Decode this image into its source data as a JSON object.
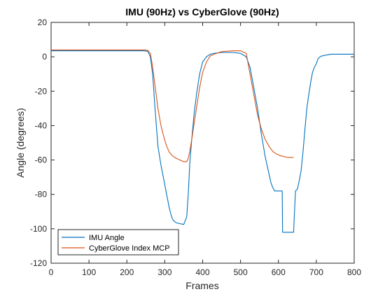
{
  "chart_data": {
    "type": "line",
    "title": "IMU (90Hz) vs CyberGlove (90Hz)",
    "xlabel": "Frames",
    "ylabel": "Angle (degrees)",
    "xlim": [
      0,
      800
    ],
    "ylim": [
      -120,
      20
    ],
    "xticks": [
      0,
      100,
      200,
      300,
      400,
      500,
      600,
      700,
      800
    ],
    "yticks": [
      -120,
      -100,
      -80,
      -60,
      -40,
      -20,
      0,
      20
    ],
    "grid": false,
    "legend_position": "bottom-left",
    "series": [
      {
        "name": "IMU Angle",
        "color": "#0072BD",
        "x": [
          0,
          100,
          200,
          245,
          255,
          262,
          268,
          275,
          282,
          290,
          298,
          305,
          312,
          318,
          322,
          330,
          340,
          350,
          358,
          362,
          366,
          372,
          378,
          385,
          392,
          400,
          410,
          420,
          430,
          450,
          480,
          500,
          515,
          525,
          535,
          545,
          555,
          565,
          575,
          580,
          585,
          590,
          600,
          610,
          611,
          625,
          640,
          645,
          650,
          655,
          660,
          665,
          670,
          675,
          680,
          685,
          690,
          695,
          700,
          705,
          710,
          715,
          725,
          740,
          760,
          780,
          800
        ],
        "y": [
          3.5,
          3.5,
          3.5,
          3.5,
          3.2,
          0,
          -10,
          -32,
          -52,
          -63,
          -72,
          -80,
          -88,
          -93,
          -95,
          -96.5,
          -97,
          -97.5,
          -93,
          -80,
          -62,
          -46,
          -32,
          -20,
          -10,
          -3,
          0,
          1.5,
          2,
          2.5,
          2.5,
          2,
          0,
          -6,
          -18,
          -30,
          -45,
          -58,
          -68,
          -73,
          -76,
          -78,
          -78,
          -78,
          -102,
          -102,
          -102,
          -78,
          -77,
          -72,
          -66,
          -55,
          -42,
          -30,
          -22,
          -15,
          -9,
          -6,
          -4,
          -1,
          0,
          0.5,
          1,
          1.5,
          1.5,
          1.5,
          1.5
        ]
      },
      {
        "name": "CyberGlove Index MCP",
        "color": "#D95319",
        "x": [
          0,
          100,
          200,
          245,
          255,
          262,
          268,
          275,
          282,
          290,
          298,
          305,
          312,
          320,
          330,
          340,
          350,
          358,
          362,
          366,
          372,
          378,
          385,
          392,
          400,
          410,
          420,
          430,
          450,
          480,
          500,
          515,
          520,
          525,
          535,
          545,
          555,
          565,
          575,
          585,
          595,
          605,
          615,
          625,
          630,
          640
        ],
        "y": [
          4,
          4,
          4,
          4,
          3.8,
          2,
          -6,
          -18,
          -30,
          -40,
          -47,
          -52,
          -55.5,
          -57.5,
          -59,
          -60,
          -61,
          -61,
          -59,
          -55,
          -47,
          -38,
          -28,
          -18,
          -9,
          -3,
          0.5,
          1.5,
          3,
          3.5,
          3.5,
          2,
          -4,
          -10,
          -22,
          -34,
          -42,
          -48,
          -52,
          -55,
          -56.5,
          -57.5,
          -58,
          -58.5,
          -58.5,
          -58.5
        ]
      }
    ]
  }
}
